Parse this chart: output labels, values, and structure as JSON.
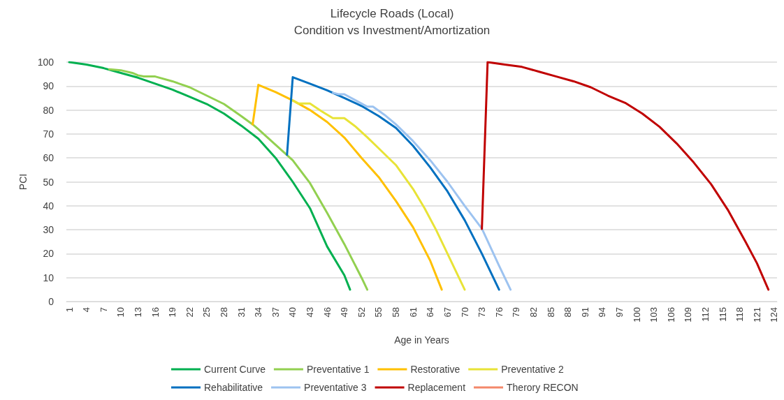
{
  "chart_data": {
    "type": "line",
    "title": "Lifecycle Roads (Local)",
    "subtitle": "Condition vs Investment/Amortization",
    "xlabel": "Age in Years",
    "ylabel": "PCI",
    "xlim": [
      0.5,
      124.5
    ],
    "xticks": [
      1,
      4,
      7,
      10,
      13,
      16,
      19,
      22,
      25,
      28,
      31,
      34,
      37,
      40,
      43,
      46,
      49,
      52,
      55,
      58,
      61,
      64,
      67,
      70,
      73,
      76,
      79,
      82,
      85,
      88,
      91,
      94,
      97,
      100,
      103,
      106,
      109,
      112,
      115,
      118,
      121,
      124
    ],
    "ylim": [
      0,
      100
    ],
    "yticks": [
      0,
      10,
      20,
      30,
      40,
      50,
      60,
      70,
      80,
      90,
      100
    ],
    "grid": "y",
    "legend": "bottom",
    "marker": "none",
    "line_style": "solid",
    "series": [
      {
        "name": "Current Curve",
        "color": "#00b050",
        "x": [
          1,
          4,
          7,
          10,
          13,
          16,
          19,
          22,
          25,
          28,
          31,
          34,
          37,
          40,
          43,
          46,
          49,
          50
        ],
        "values": [
          100,
          99,
          97.5,
          95.5,
          93.5,
          91,
          88.5,
          85.5,
          82.5,
          78.5,
          73.5,
          68,
          60,
          50,
          39,
          23,
          11,
          5
        ]
      },
      {
        "name": "Preventative 1",
        "color": "#92d050",
        "x": [
          8,
          9,
          10,
          12,
          13,
          14,
          16,
          19,
          22,
          25,
          28,
          31,
          33,
          34,
          37,
          40,
          43,
          46,
          49,
          52,
          53
        ],
        "values": [
          97,
          96.8,
          96.6,
          95.5,
          94.5,
          94,
          94,
          92,
          89.5,
          86,
          82.5,
          77.5,
          74,
          72,
          65.5,
          59,
          49.5,
          37,
          24,
          10,
          5
        ]
      },
      {
        "name": "Restorative",
        "color": "#ffc000",
        "x": [
          33,
          34,
          37,
          40,
          43,
          46,
          49,
          52,
          55,
          58,
          61,
          64,
          66
        ],
        "values": [
          74,
          90.5,
          87.5,
          84,
          80,
          75,
          68.5,
          60,
          52,
          42,
          31,
          17,
          5
        ]
      },
      {
        "name": "Preventative 2",
        "color": "#e8e337",
        "x": [
          40,
          41,
          43,
          45,
          47,
          49,
          51,
          53,
          55,
          58,
          61,
          63,
          65,
          67,
          70
        ],
        "values": [
          84,
          82.7,
          82.7,
          79.5,
          76.6,
          76.6,
          73,
          68.6,
          64,
          57,
          47,
          39,
          30,
          20,
          5
        ]
      },
      {
        "name": "Rehabilitative",
        "color": "#0070c0",
        "x": [
          39,
          40,
          43,
          46,
          49,
          52,
          55,
          58,
          61,
          64,
          67,
          70,
          73,
          76
        ],
        "values": [
          61.3,
          93.7,
          91,
          88.2,
          85,
          81.7,
          77.5,
          72.5,
          65,
          56,
          46,
          34,
          20,
          5
        ]
      },
      {
        "name": "Preventative 3",
        "color": "#9dc3f0",
        "x": [
          47,
          48,
          49,
          51,
          53,
          54,
          56,
          58,
          61,
          64,
          67,
          70,
          73,
          76,
          78
        ],
        "values": [
          87.2,
          86.6,
          86.6,
          84,
          81.4,
          81.4,
          78,
          74,
          67,
          59,
          50,
          40,
          30.5,
          15,
          5
        ]
      },
      {
        "name": "Replacement",
        "color": "#c00000",
        "x": [
          73,
          74,
          77,
          80,
          83,
          86,
          89,
          92,
          95,
          98,
          101,
          104,
          107,
          110,
          113,
          116,
          119,
          121,
          123
        ],
        "values": [
          30.3,
          100,
          99,
          98,
          96,
          94,
          92,
          89.5,
          86,
          83,
          78.5,
          73,
          66,
          58,
          49,
          38,
          25,
          16,
          5
        ]
      },
      {
        "name": "Therory RECON",
        "color": "#f4886a"
      }
    ]
  }
}
